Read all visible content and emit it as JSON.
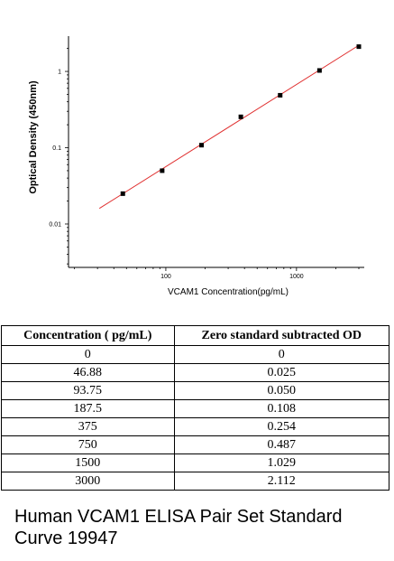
{
  "chart_data": {
    "type": "scatter",
    "xlabel": "VCAM1  Concentration(pg/mL)",
    "ylabel": "Optical Density (450nm)",
    "x_scale": "log",
    "y_scale": "log",
    "xlim": [
      18,
      3300
    ],
    "ylim": [
      0.0027,
      2.9
    ],
    "x_ticks": [
      {
        "value": 100,
        "label": "100"
      },
      {
        "value": 1000,
        "label": "1000"
      }
    ],
    "y_ticks": [
      {
        "value": 0.01,
        "label": "0.01"
      },
      {
        "value": 0.1,
        "label": "0.1"
      },
      {
        "value": 1,
        "label": "1"
      }
    ],
    "points": [
      {
        "x": 46.88,
        "y": 0.025
      },
      {
        "x": 93.75,
        "y": 0.05
      },
      {
        "x": 187.5,
        "y": 0.108
      },
      {
        "x": 375,
        "y": 0.254
      },
      {
        "x": 750,
        "y": 0.487
      },
      {
        "x": 1500,
        "y": 1.029
      },
      {
        "x": 3000,
        "y": 2.112
      }
    ],
    "fit_line": {
      "x": [
        31,
        3000
      ],
      "y": [
        0.016,
        2.2
      ],
      "color": "#e03030"
    },
    "marker_color": "#000000",
    "grid": false
  },
  "table": {
    "headers": [
      "Concentration ( pg/mL)",
      "Zero standard subtracted OD"
    ],
    "rows": [
      [
        "0",
        "0"
      ],
      [
        "46.88",
        "0.025"
      ],
      [
        "93.75",
        "0.050"
      ],
      [
        "187.5",
        "0.108"
      ],
      [
        "375",
        "0.254"
      ],
      [
        "750",
        "0.487"
      ],
      [
        "1500",
        "1.029"
      ],
      [
        "3000",
        "2.112"
      ]
    ]
  },
  "caption": "Human VCAM1 ELISA Pair Set Standard Curve 19947"
}
